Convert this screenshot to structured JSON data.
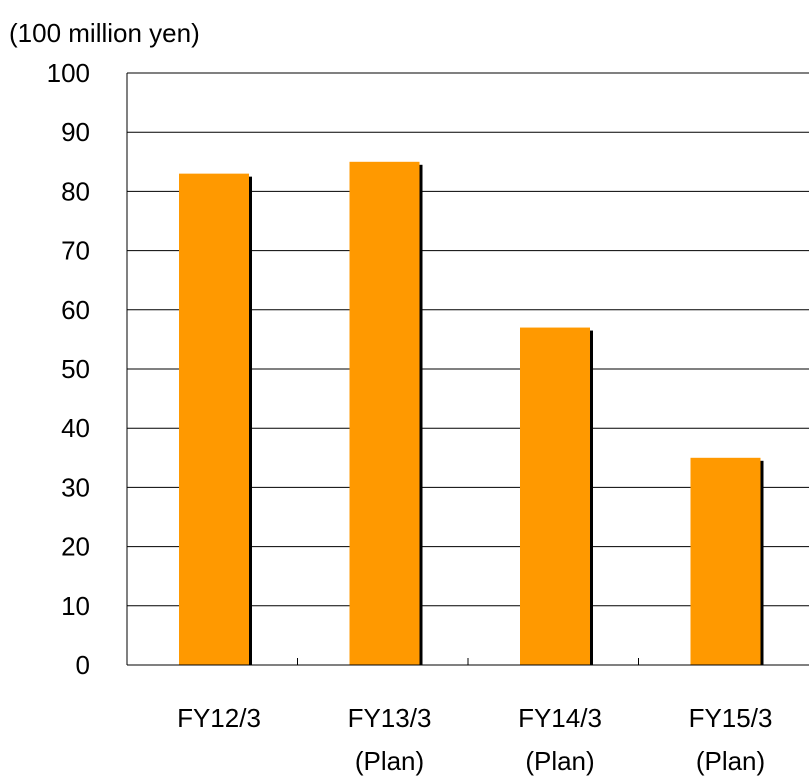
{
  "chart_data": {
    "type": "bar",
    "unit_label": "(100 million yen)",
    "categories": [
      {
        "line1": "FY12/3",
        "line2": ""
      },
      {
        "line1": "FY13/3",
        "line2": "(Plan)"
      },
      {
        "line1": "FY14/3",
        "line2": "(Plan)"
      },
      {
        "line1": "FY15/3",
        "line2": "(Plan)"
      }
    ],
    "values": [
      83,
      85,
      57,
      35
    ],
    "ylim": [
      0,
      100
    ],
    "yticks": [
      "0",
      "10",
      "20",
      "30",
      "40",
      "50",
      "60",
      "70",
      "80",
      "90",
      "100"
    ],
    "grid": true,
    "legend": "none",
    "colors": {
      "bar": "#FF9900",
      "bar_shadow": "#000000",
      "grid": "#000000",
      "axis": "#000000",
      "text": "#000000"
    }
  }
}
